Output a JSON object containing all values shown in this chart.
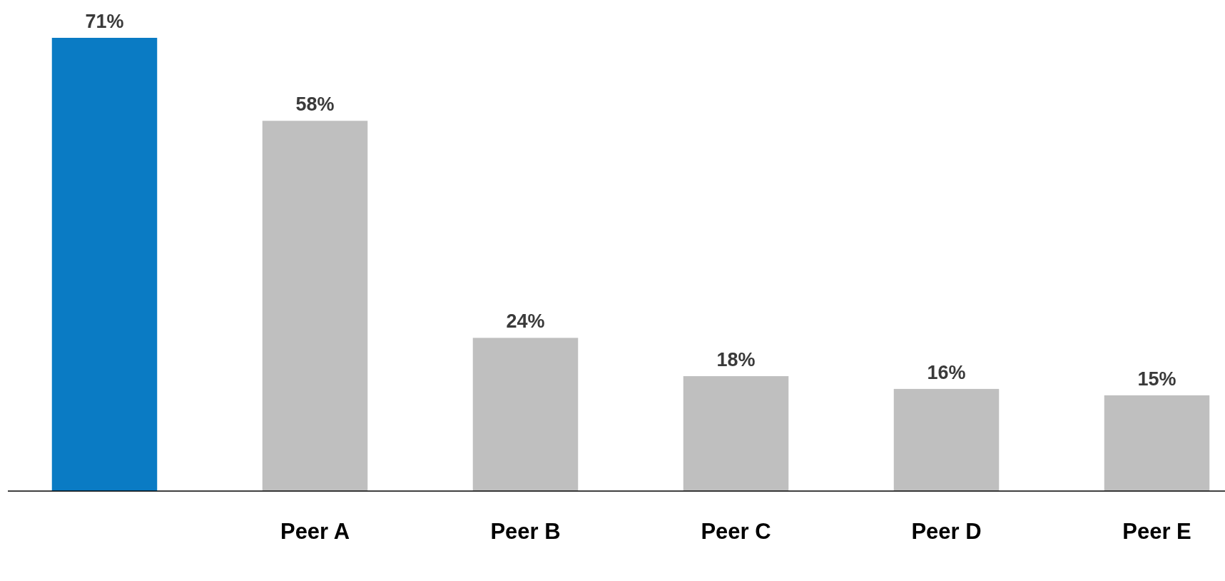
{
  "chart_data": {
    "type": "bar",
    "categories": [
      null,
      "Peer A",
      "Peer B",
      "Peer C",
      "Peer D",
      "Peer E"
    ],
    "values": [
      71,
      58,
      24,
      18,
      16,
      15
    ],
    "colors": [
      "#0a7bc4",
      "#bfbfbf",
      "#bfbfbf",
      "#bfbfbf",
      "#bfbfbf",
      "#bfbfbf"
    ],
    "value_labels": [
      "71%",
      "58%",
      "24%",
      "18%",
      "16%",
      "15%"
    ]
  }
}
